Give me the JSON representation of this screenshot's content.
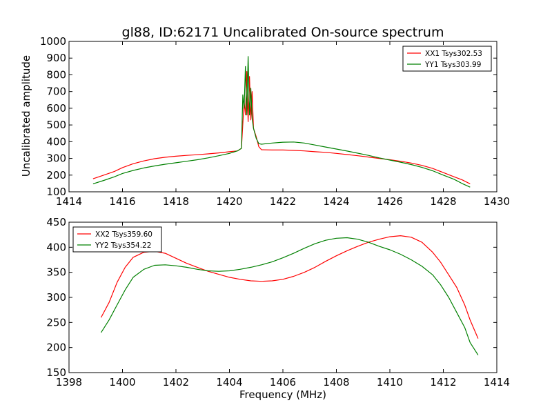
{
  "chart_data": [
    {
      "type": "line",
      "title": "gl88, ID:62171 Uncalibrated On-source spectrum",
      "xlabel": "",
      "ylabel": "Uncalibrated amplitude",
      "xlim": [
        1414,
        1430
      ],
      "ylim": [
        100,
        1000
      ],
      "xticks": [
        1414,
        1416,
        1418,
        1420,
        1422,
        1424,
        1426,
        1428,
        1430
      ],
      "yticks": [
        100,
        200,
        300,
        400,
        500,
        600,
        700,
        800,
        900,
        1000
      ],
      "legend_position": "upper right",
      "grid": false,
      "series": [
        {
          "name": "XX1 Tsys302.53",
          "color": "#ff0000",
          "points": [
            [
              1414.9,
              178
            ],
            [
              1415.3,
              200
            ],
            [
              1415.7,
              222
            ],
            [
              1416.0,
              245
            ],
            [
              1416.4,
              268
            ],
            [
              1416.8,
              285
            ],
            [
              1417.2,
              298
            ],
            [
              1417.6,
              307
            ],
            [
              1418.0,
              313
            ],
            [
              1418.4,
              318
            ],
            [
              1418.8,
              322
            ],
            [
              1419.2,
              327
            ],
            [
              1419.6,
              333
            ],
            [
              1420.0,
              340
            ],
            [
              1420.3,
              345
            ],
            [
              1420.45,
              360
            ],
            [
              1420.55,
              640
            ],
            [
              1420.6,
              560
            ],
            [
              1420.65,
              820
            ],
            [
              1420.7,
              520
            ],
            [
              1420.75,
              790
            ],
            [
              1420.8,
              530
            ],
            [
              1420.85,
              700
            ],
            [
              1420.9,
              480
            ],
            [
              1421.0,
              430
            ],
            [
              1421.1,
              370
            ],
            [
              1421.2,
              352
            ],
            [
              1421.6,
              350
            ],
            [
              1422.0,
              350
            ],
            [
              1422.4,
              348
            ],
            [
              1422.8,
              345
            ],
            [
              1423.2,
              340
            ],
            [
              1423.6,
              336
            ],
            [
              1424.0,
              330
            ],
            [
              1424.4,
              323
            ],
            [
              1424.8,
              316
            ],
            [
              1425.2,
              308
            ],
            [
              1425.6,
              300
            ],
            [
              1426.0,
              292
            ],
            [
              1426.4,
              283
            ],
            [
              1426.8,
              272
            ],
            [
              1427.2,
              258
            ],
            [
              1427.6,
              240
            ],
            [
              1428.0,
              215
            ],
            [
              1428.4,
              190
            ],
            [
              1428.7,
              172
            ],
            [
              1429.0,
              148
            ]
          ]
        },
        {
          "name": "YY1 Tsys303.99",
          "color": "#008000",
          "points": [
            [
              1414.9,
              148
            ],
            [
              1415.3,
              168
            ],
            [
              1415.7,
              190
            ],
            [
              1416.0,
              210
            ],
            [
              1416.4,
              228
            ],
            [
              1416.8,
              243
            ],
            [
              1417.2,
              255
            ],
            [
              1417.6,
              265
            ],
            [
              1418.0,
              274
            ],
            [
              1418.4,
              283
            ],
            [
              1418.8,
              292
            ],
            [
              1419.2,
              303
            ],
            [
              1419.6,
              316
            ],
            [
              1420.0,
              330
            ],
            [
              1420.3,
              345
            ],
            [
              1420.45,
              360
            ],
            [
              1420.5,
              680
            ],
            [
              1420.55,
              600
            ],
            [
              1420.6,
              850
            ],
            [
              1420.65,
              560
            ],
            [
              1420.7,
              910
            ],
            [
              1420.75,
              560
            ],
            [
              1420.8,
              720
            ],
            [
              1420.85,
              540
            ],
            [
              1420.9,
              480
            ],
            [
              1421.0,
              420
            ],
            [
              1421.1,
              388
            ],
            [
              1421.2,
              385
            ],
            [
              1421.6,
              392
            ],
            [
              1422.0,
              397
            ],
            [
              1422.4,
              398
            ],
            [
              1422.8,
              392
            ],
            [
              1423.2,
              380
            ],
            [
              1423.6,
              368
            ],
            [
              1424.0,
              356
            ],
            [
              1424.4,
              344
            ],
            [
              1424.8,
              331
            ],
            [
              1425.2,
              318
            ],
            [
              1425.6,
              303
            ],
            [
              1426.0,
              290
            ],
            [
              1426.4,
              277
            ],
            [
              1426.8,
              263
            ],
            [
              1427.2,
              246
            ],
            [
              1427.6,
              226
            ],
            [
              1428.0,
              200
            ],
            [
              1428.4,
              175
            ],
            [
              1428.7,
              150
            ],
            [
              1429.0,
              128
            ]
          ]
        }
      ]
    },
    {
      "type": "line",
      "title": "",
      "xlabel": "Frequency (MHz)",
      "ylabel": "",
      "xlim": [
        1398,
        1414
      ],
      "ylim": [
        150,
        450
      ],
      "xticks": [
        1398,
        1400,
        1402,
        1404,
        1406,
        1408,
        1410,
        1412,
        1414
      ],
      "yticks": [
        150,
        200,
        250,
        300,
        350,
        400,
        450
      ],
      "legend_position": "upper left",
      "grid": false,
      "series": [
        {
          "name": "XX2 Tsys359.60",
          "color": "#ff0000",
          "points": [
            [
              1399.2,
              260
            ],
            [
              1399.5,
              290
            ],
            [
              1399.8,
              330
            ],
            [
              1400.1,
              360
            ],
            [
              1400.4,
              380
            ],
            [
              1400.8,
              390
            ],
            [
              1401.2,
              392
            ],
            [
              1401.6,
              388
            ],
            [
              1402.0,
              378
            ],
            [
              1402.4,
              368
            ],
            [
              1402.8,
              360
            ],
            [
              1403.2,
              352
            ],
            [
              1403.6,
              346
            ],
            [
              1404.0,
              340
            ],
            [
              1404.4,
              336
            ],
            [
              1404.8,
              333
            ],
            [
              1405.2,
              332
            ],
            [
              1405.6,
              333
            ],
            [
              1406.0,
              336
            ],
            [
              1406.4,
              342
            ],
            [
              1406.8,
              350
            ],
            [
              1407.2,
              360
            ],
            [
              1407.6,
              372
            ],
            [
              1408.0,
              383
            ],
            [
              1408.4,
              393
            ],
            [
              1408.8,
              402
            ],
            [
              1409.2,
              410
            ],
            [
              1409.6,
              416
            ],
            [
              1410.0,
              421
            ],
            [
              1410.4,
              423
            ],
            [
              1410.8,
              420
            ],
            [
              1411.2,
              410
            ],
            [
              1411.6,
              390
            ],
            [
              1411.9,
              370
            ],
            [
              1412.2,
              345
            ],
            [
              1412.5,
              320
            ],
            [
              1412.8,
              285
            ],
            [
              1413.0,
              255
            ],
            [
              1413.3,
              218
            ]
          ]
        },
        {
          "name": "YY2 Tsys354.22",
          "color": "#008000",
          "points": [
            [
              1399.2,
              230
            ],
            [
              1399.5,
              255
            ],
            [
              1399.8,
              285
            ],
            [
              1400.1,
              315
            ],
            [
              1400.4,
              340
            ],
            [
              1400.8,
              356
            ],
            [
              1401.2,
              364
            ],
            [
              1401.6,
              365
            ],
            [
              1402.0,
              363
            ],
            [
              1402.4,
              360
            ],
            [
              1402.8,
              356
            ],
            [
              1403.2,
              353
            ],
            [
              1403.6,
              352
            ],
            [
              1404.0,
              353
            ],
            [
              1404.4,
              356
            ],
            [
              1404.8,
              360
            ],
            [
              1405.2,
              365
            ],
            [
              1405.6,
              371
            ],
            [
              1406.0,
              379
            ],
            [
              1406.4,
              388
            ],
            [
              1406.8,
              398
            ],
            [
              1407.2,
              407
            ],
            [
              1407.6,
              414
            ],
            [
              1408.0,
              418
            ],
            [
              1408.4,
              419
            ],
            [
              1408.8,
              416
            ],
            [
              1409.2,
              410
            ],
            [
              1409.6,
              402
            ],
            [
              1410.0,
              395
            ],
            [
              1410.4,
              386
            ],
            [
              1410.8,
              375
            ],
            [
              1411.2,
              362
            ],
            [
              1411.6,
              345
            ],
            [
              1411.9,
              325
            ],
            [
              1412.2,
              300
            ],
            [
              1412.5,
              270
            ],
            [
              1412.8,
              240
            ],
            [
              1413.0,
              210
            ],
            [
              1413.3,
              185
            ]
          ]
        }
      ]
    }
  ]
}
